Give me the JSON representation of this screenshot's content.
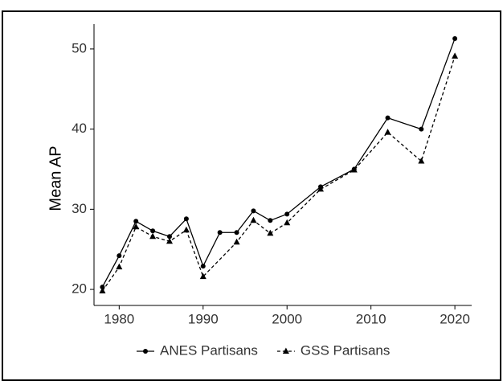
{
  "chart_data": {
    "type": "line",
    "y_label": "Mean AP",
    "series": [
      {
        "name": "ANES Partisans",
        "color": "#000000",
        "dash": "solid",
        "marker": "circle",
        "x": [
          1978,
          1980,
          1982,
          1984,
          1986,
          1988,
          1990,
          1992,
          1994,
          1996,
          1998,
          2000,
          2004,
          2008,
          2012,
          2016,
          2020
        ],
        "values": [
          20.3,
          24.2,
          28.5,
          27.3,
          26.6,
          28.8,
          22.9,
          27.1,
          27.1,
          29.8,
          28.6,
          29.4,
          32.8,
          35.0,
          41.4,
          40.0,
          51.3
        ]
      },
      {
        "name": "GSS Partisans",
        "color": "#000000",
        "dash": "dashed",
        "marker": "triangle",
        "x": [
          1978,
          1980,
          1982,
          1984,
          1986,
          1988,
          1990,
          1994,
          1996,
          1998,
          2000,
          2004,
          2008,
          2012,
          2016,
          2020
        ],
        "values": [
          19.8,
          22.8,
          27.8,
          26.6,
          26.0,
          27.4,
          21.6,
          25.9,
          28.6,
          27.0,
          28.3,
          32.5,
          34.9,
          39.6,
          36.0,
          49.1
        ]
      }
    ],
    "xlim": [
      1977,
      2022
    ],
    "xticks": [
      1980,
      1990,
      2000,
      2010,
      2020
    ],
    "ylim": [
      18,
      53.1
    ],
    "yticks": [
      20,
      30,
      40,
      50
    ],
    "legend": "bottom"
  }
}
